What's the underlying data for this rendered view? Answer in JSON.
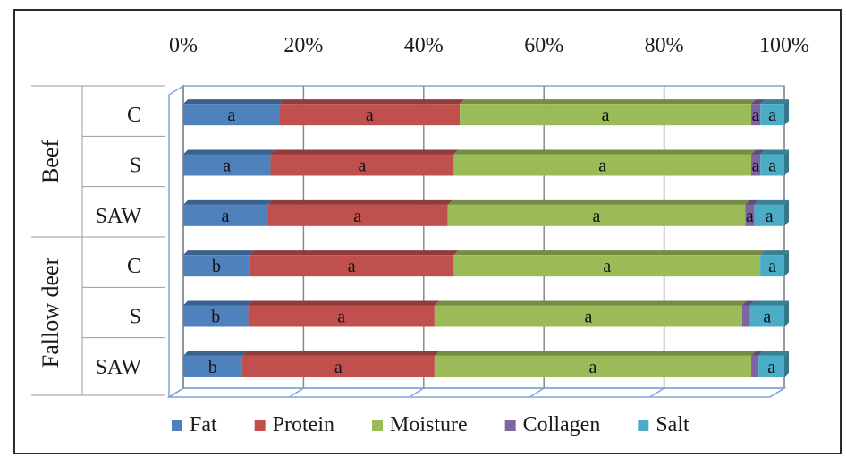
{
  "chart_data": {
    "type": "bar",
    "orientation": "horizontal",
    "stacked": "percent",
    "axis_ticks": [
      "0%",
      "20%",
      "40%",
      "60%",
      "80%",
      "100%"
    ],
    "xlim": [
      0,
      100
    ],
    "grid": true,
    "legend_position": "bottom",
    "groups": [
      {
        "name": "Beef",
        "categories": [
          "C",
          "S",
          "SAW"
        ]
      },
      {
        "name": "Fallow deer",
        "categories": [
          "C",
          "S",
          "SAW"
        ]
      }
    ],
    "rows": [
      {
        "group": "Beef",
        "category": "C"
      },
      {
        "group": "Beef",
        "category": "S"
      },
      {
        "group": "Beef",
        "category": "SAW"
      },
      {
        "group": "Fallow deer",
        "category": "C"
      },
      {
        "group": "Fallow deer",
        "category": "S"
      },
      {
        "group": "Fallow deer",
        "category": "SAW"
      }
    ],
    "series": [
      {
        "name": "Fat",
        "color": "#4F81BD",
        "values": [
          16,
          14.5,
          14,
          11,
          10.8,
          9.8
        ],
        "labels": [
          "a",
          "a",
          "a",
          "b",
          "b",
          "b"
        ]
      },
      {
        "name": "Protein",
        "color": "#C0504D",
        "values": [
          30,
          30.5,
          30,
          34,
          31,
          32
        ],
        "labels": [
          "a",
          "a",
          "a",
          "a",
          "a",
          "a"
        ]
      },
      {
        "name": "Moisture",
        "color": "#9BBB59",
        "values": [
          48.5,
          49.5,
          49.5,
          51,
          51.2,
          52.7
        ],
        "labels": [
          "a",
          "a",
          "a",
          "a",
          "a",
          "a"
        ]
      },
      {
        "name": "Collagen",
        "color": "#8064A2",
        "values": [
          1.5,
          1.5,
          1.5,
          0,
          1.3,
          1.2
        ],
        "labels": [
          "a",
          "a",
          "a",
          "",
          "",
          ""
        ]
      },
      {
        "name": "Salt",
        "color": "#4BACC6",
        "values": [
          4,
          4,
          5,
          4,
          5.7,
          4.3
        ],
        "labels": [
          "a",
          "a",
          "a",
          "a",
          "a",
          "a"
        ]
      }
    ]
  }
}
